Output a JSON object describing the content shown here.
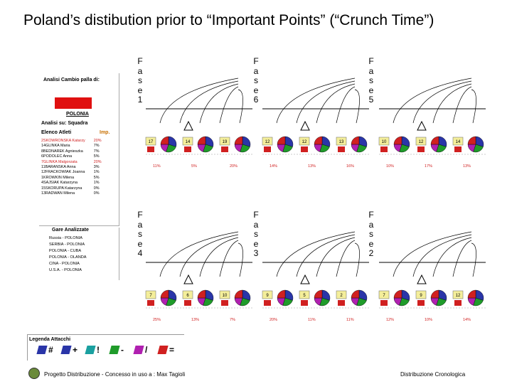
{
  "slide": {
    "title": "Poland’s distibution prior to “Important Points” (“Crunch Time”)"
  },
  "panel": {
    "analysis_title": "Analisi Cambio palla di:",
    "team_name": "POLONIA",
    "analisi_label": "Analisi su: Squadra",
    "athletes_header": "Elenco Atleti",
    "imp_header": "Imp.",
    "athletes": [
      {
        "name": "2SKOWRONSKA Katarzy",
        "value": "20%",
        "highlight": true
      },
      {
        "name": "14GLINKA Maria",
        "value": "7%",
        "highlight": false
      },
      {
        "name": "8BEDNAREK Agnieszka",
        "value": "7%",
        "highlight": false
      },
      {
        "name": "6PODOLEC Anna",
        "value": "5%",
        "highlight": false
      },
      {
        "name": "7GLINKA Malgorzata",
        "value": "20%",
        "highlight": true
      },
      {
        "name": "11BARANSKA Anna",
        "value": "3%",
        "highlight": false
      },
      {
        "name": "12FRACKOWIAK Joanna",
        "value": "1%",
        "highlight": false
      },
      {
        "name": "1KROWKIN Milena",
        "value": "5%",
        "highlight": false
      },
      {
        "name": "4SAJSIAK Katarzyna",
        "value": "1%",
        "highlight": false
      },
      {
        "name": "15SKORUPA Katarzyna",
        "value": "0%",
        "highlight": false
      },
      {
        "name": "13RADWAN Milena",
        "value": "0%",
        "highlight": false
      }
    ],
    "matches_title": "Gare Analizzate",
    "matches": [
      "Russia - POLONIA",
      "SERBIA - POLONIA",
      "POLONIA - CUBA",
      "POLONIA - OLANDA",
      "CINA - POLONIA",
      "U.S.A. - POLONIA"
    ]
  },
  "legend": {
    "title": "Legenda Attacchi",
    "items": [
      {
        "symbol": "#",
        "color": "#2a35a8"
      },
      {
        "symbol": "+",
        "color": "#2a35a8"
      },
      {
        "symbol": "!",
        "color": "#1aa0a0"
      },
      {
        "symbol": "-",
        "color": "#1f9b2a"
      },
      {
        "symbol": "/",
        "color": "#b020b0"
      },
      {
        "symbol": "=",
        "color": "#d02020"
      }
    ]
  },
  "phases": [
    {
      "label": "Fase 1",
      "letters": [
        "F",
        "a",
        "s",
        "e",
        "1"
      ],
      "percents": [
        "11%",
        "5%",
        "20%"
      ],
      "top_nums": [
        "17",
        "14",
        "19"
      ]
    },
    {
      "label": "Fase 6",
      "letters": [
        "F",
        "a",
        "s",
        "e",
        "6"
      ],
      "percents": [
        "14%",
        "13%",
        "16%"
      ],
      "top_nums": [
        "12",
        "12",
        "13"
      ]
    },
    {
      "label": "Fase 5",
      "letters": [
        "F",
        "a",
        "s",
        "e",
        "5"
      ],
      "percents": [
        "10%",
        "17%",
        "13%"
      ],
      "top_nums": [
        "10",
        "12",
        "14"
      ]
    },
    {
      "label": "Fase 4",
      "letters": [
        "F",
        "a",
        "s",
        "e",
        "4"
      ],
      "percents": [
        "25%",
        "13%",
        "7%"
      ],
      "top_nums": [
        "7",
        "6",
        "10"
      ]
    },
    {
      "label": "Fase 3",
      "letters": [
        "F",
        "a",
        "s",
        "e",
        "3"
      ],
      "percents": [
        "20%",
        "11%",
        "11%"
      ],
      "top_nums": [
        "9",
        "5",
        "2"
      ]
    },
    {
      "label": "Fase 2",
      "letters": [
        "F",
        "a",
        "s",
        "e",
        "2"
      ],
      "percents": [
        "12%",
        "10%",
        "14%"
      ],
      "top_nums": [
        "7",
        "9",
        "12"
      ]
    }
  ],
  "footer": {
    "left": "Progetto Distribuzione - Concesso in uso a : Max Tagioli",
    "right": "Distribuzione Cronologica"
  }
}
